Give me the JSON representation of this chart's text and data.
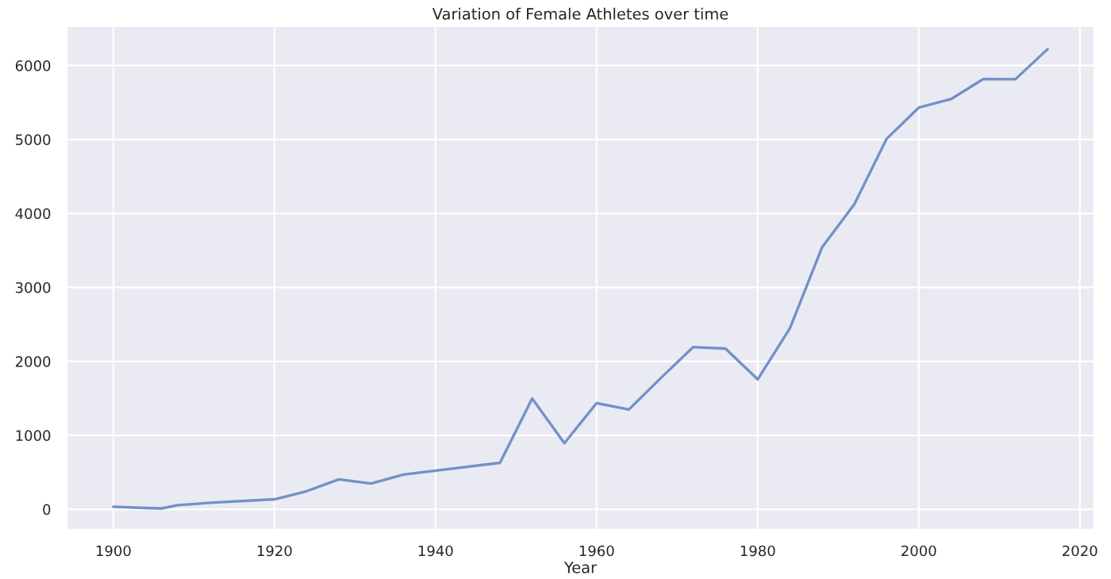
{
  "chart_data": {
    "type": "line",
    "title": "Variation of Female Athletes over time",
    "xlabel": "Year",
    "x": [
      1900,
      1904,
      1906,
      1908,
      1912,
      1920,
      1924,
      1928,
      1932,
      1936,
      1948,
      1952,
      1956,
      1960,
      1964,
      1968,
      1972,
      1976,
      1980,
      1984,
      1988,
      1992,
      1996,
      2000,
      2004,
      2008,
      2012,
      2016
    ],
    "series": [
      {
        "color": "#7390c8",
        "values": [
          33,
          16,
          11,
          55,
          87,
          134,
          244,
          404,
          347,
          468,
          628,
          1497,
          893,
          1435,
          1348,
          1777,
          2193,
          2172,
          1756,
          2447,
          3543,
          4124,
          5008,
          5431,
          5546,
          5816,
          5815,
          6223
        ]
      }
    ],
    "xlim": [
      1894.2,
      2021.8
    ],
    "ylim": [
      -278,
      6534
    ],
    "xticks": [
      1900,
      1920,
      1940,
      1960,
      1980,
      2000,
      2020
    ],
    "yticks": [
      0,
      1000,
      2000,
      3000,
      4000,
      5000,
      6000
    ],
    "grid": true,
    "marker": "none",
    "line_style": "solid"
  }
}
